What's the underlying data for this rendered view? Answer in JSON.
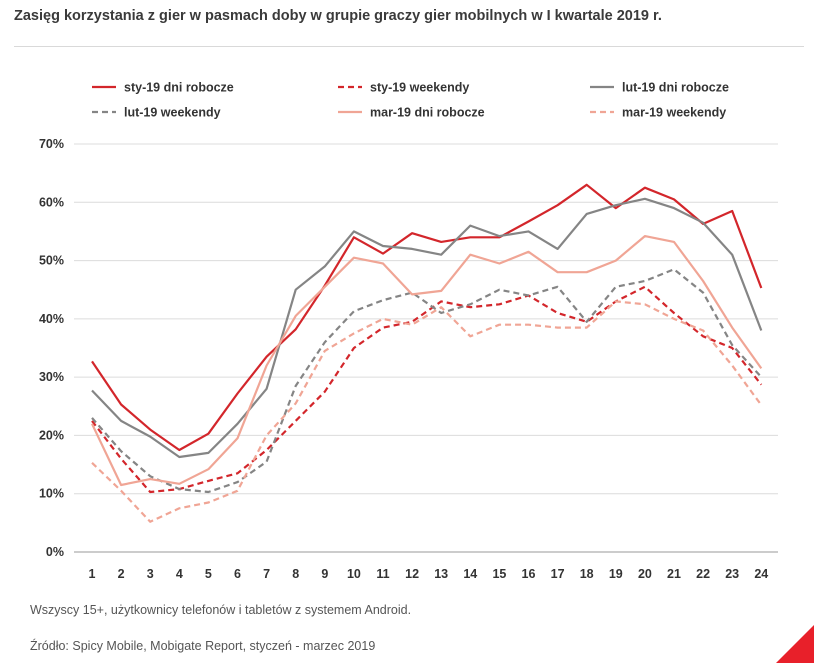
{
  "page": {
    "note": "Wszyscy 15+, użytkownicy telefonów i tabletów z systemem Android.",
    "source": "Źródło: Spicy Mobile, Mobigate Report, styczeń - marzec 2019",
    "accent_color": "#e8202a"
  },
  "chart_data": {
    "type": "line",
    "title": "Zasięg korzystania z gier w pasmach doby w grupie graczy gier mobilnych w I kwartale 2019 r.",
    "xlabel": "",
    "ylabel": "",
    "x": [
      1,
      2,
      3,
      4,
      5,
      6,
      7,
      8,
      9,
      10,
      11,
      12,
      13,
      14,
      15,
      16,
      17,
      18,
      19,
      20,
      21,
      22,
      23,
      24
    ],
    "ylim": [
      0,
      70
    ],
    "yticks": [
      0,
      10,
      20,
      30,
      40,
      50,
      60,
      70
    ],
    "ytick_labels": [
      "0%",
      "10%",
      "20%",
      "30%",
      "40%",
      "50%",
      "60%",
      "70%"
    ],
    "grid": "horizontal",
    "legend_position": "top",
    "series": [
      {
        "name": "sty-19 dni robocze",
        "color": "#d3262b",
        "dashed": false,
        "values": [
          32.7,
          25.3,
          21,
          17.5,
          20.3,
          27.2,
          33.5,
          38.2,
          45.7,
          54,
          51.2,
          54.7,
          53.2,
          54,
          54,
          56.7,
          59.5,
          63,
          59,
          62.5,
          60.5,
          56.3,
          58.5,
          45.3
        ]
      },
      {
        "name": "sty-19 weekendy",
        "color": "#d3262b",
        "dashed": true,
        "values": [
          22.5,
          16,
          10.3,
          10.8,
          12.2,
          13.5,
          17.5,
          22.5,
          27.5,
          35,
          38.5,
          39.5,
          43,
          42,
          42.5,
          44,
          41,
          39.5,
          43,
          45.5,
          41,
          37,
          35,
          28.7
        ]
      },
      {
        "name": "lut-19 dni robocze",
        "color": "#858585",
        "dashed": false,
        "values": [
          27.7,
          22.5,
          19.8,
          16.3,
          17,
          22,
          28,
          45,
          49,
          55,
          52.5,
          52,
          51,
          56,
          54.2,
          55,
          52,
          58,
          59.5,
          60.6,
          59,
          56.5,
          51,
          38
        ]
      },
      {
        "name": "lut-19 weekendy",
        "color": "#858585",
        "dashed": true,
        "values": [
          23,
          17.3,
          13,
          10.8,
          10.3,
          12,
          15.5,
          28.5,
          36,
          41.3,
          43.2,
          44.5,
          41,
          42.5,
          45,
          44,
          45.5,
          39.5,
          45.5,
          46.5,
          48.5,
          44.5,
          35.5,
          30
        ]
      },
      {
        "name": "mar-19 dni robocze",
        "color": "#f0a595",
        "dashed": false,
        "values": [
          22,
          11.5,
          12.5,
          11.7,
          14.2,
          19.5,
          32,
          40.5,
          45.5,
          50.5,
          49.5,
          44.2,
          44.8,
          51,
          49.5,
          51.5,
          48,
          48,
          50,
          54.2,
          53.2,
          46.5,
          38.5,
          31.5
        ]
      },
      {
        "name": "mar-19 weekendy",
        "color": "#f0a595",
        "dashed": true,
        "values": [
          15.3,
          10.5,
          5.2,
          7.5,
          8.5,
          10.5,
          20,
          25.5,
          34.5,
          37.5,
          40,
          39,
          42,
          37,
          39,
          39,
          38.5,
          38.5,
          43,
          42.5,
          40,
          38,
          32,
          25.2
        ]
      }
    ]
  }
}
